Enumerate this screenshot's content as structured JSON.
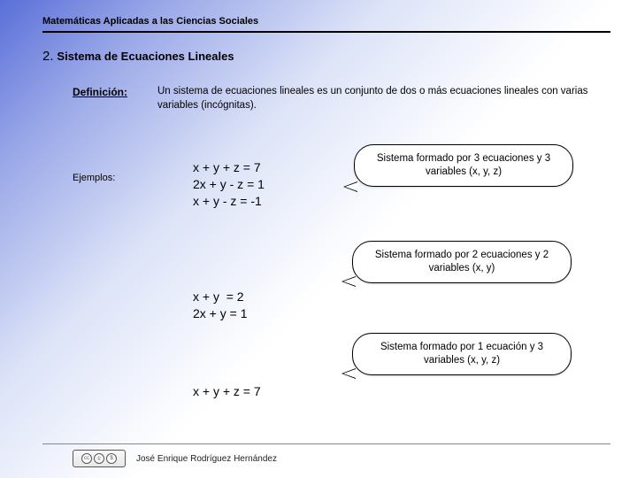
{
  "header": {
    "title": "Matemáticas Aplicadas a las Ciencias Sociales"
  },
  "section": {
    "number": "2.",
    "title": "Sistema de Ecuaciones Lineales"
  },
  "definition": {
    "label": "Definición:",
    "text": "Un  sistema de ecuaciones lineales es un conjunto de dos o más ecuaciones lineales con varias variables (incógnitas)."
  },
  "examples_label": "Ejemplos:",
  "equations": {
    "block1": "x + y + z = 7\n2x + y - z = 1\nx + y - z = -1",
    "block2": "x + y  = 2\n2x + y = 1",
    "block3": "x + y + z = 7"
  },
  "callouts": {
    "c1": "Sistema formado por 3 ecuaciones y 3 variables (x, y, z)",
    "c2": "Sistema formado por 2 ecuaciones y 2 variables (x, y)",
    "c3": "Sistema formado por 1 ecuación y 3 variables (x, y, z)"
  },
  "footer": {
    "author": "José Enrique Rodríguez Hernández",
    "cc_parts": [
      "cc",
      "①",
      "$"
    ]
  },
  "colors": {
    "gradient_start": "#5a6fd8",
    "gradient_mid": "#dde4f8",
    "gradient_end": "#ffffff",
    "text": "#000000",
    "callout_bg": "#ffffff",
    "callout_border": "#000000"
  },
  "typography": {
    "header_fontsize": 11,
    "section_fontsize": 13,
    "body_fontsize": 11.5,
    "equation_fontsize": 14,
    "footer_fontsize": 10
  }
}
